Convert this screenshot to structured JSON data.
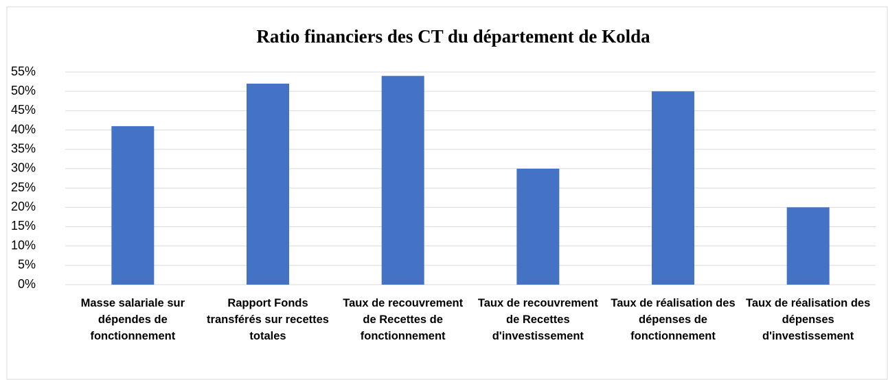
{
  "chart_data": {
    "type": "bar",
    "title": "Ratio financiers des CT du département de Kolda",
    "categories": [
      "Masse salariale sur dépendes de fonctionnement",
      "Rapport Fonds transférés sur recettes totales",
      "Taux de recouvrement de Recettes de fonctionnement",
      "Taux de recouvrement de Recettes d'investissement",
      "Taux de réalisation des dépenses de fonctionnement",
      "Taux de réalisation des dépenses d'investissement"
    ],
    "values": [
      41,
      52,
      54,
      30,
      50,
      20
    ],
    "color": "#4472c4",
    "ylim": [
      0,
      55
    ],
    "yticks": [
      {
        "value": 0,
        "label": "0%"
      },
      {
        "value": 5,
        "label": "5%"
      },
      {
        "value": 10,
        "label": "10%"
      },
      {
        "value": 15,
        "label": "15%"
      },
      {
        "value": 20,
        "label": "20%"
      },
      {
        "value": 25,
        "label": "25%"
      },
      {
        "value": 30,
        "label": "30%"
      },
      {
        "value": 35,
        "label": "35%"
      },
      {
        "value": 40,
        "label": "40%"
      },
      {
        "value": 45,
        "label": "45%"
      },
      {
        "value": 50,
        "label": "50%"
      },
      {
        "value": 55,
        "label": "55%"
      }
    ],
    "grid": true
  }
}
